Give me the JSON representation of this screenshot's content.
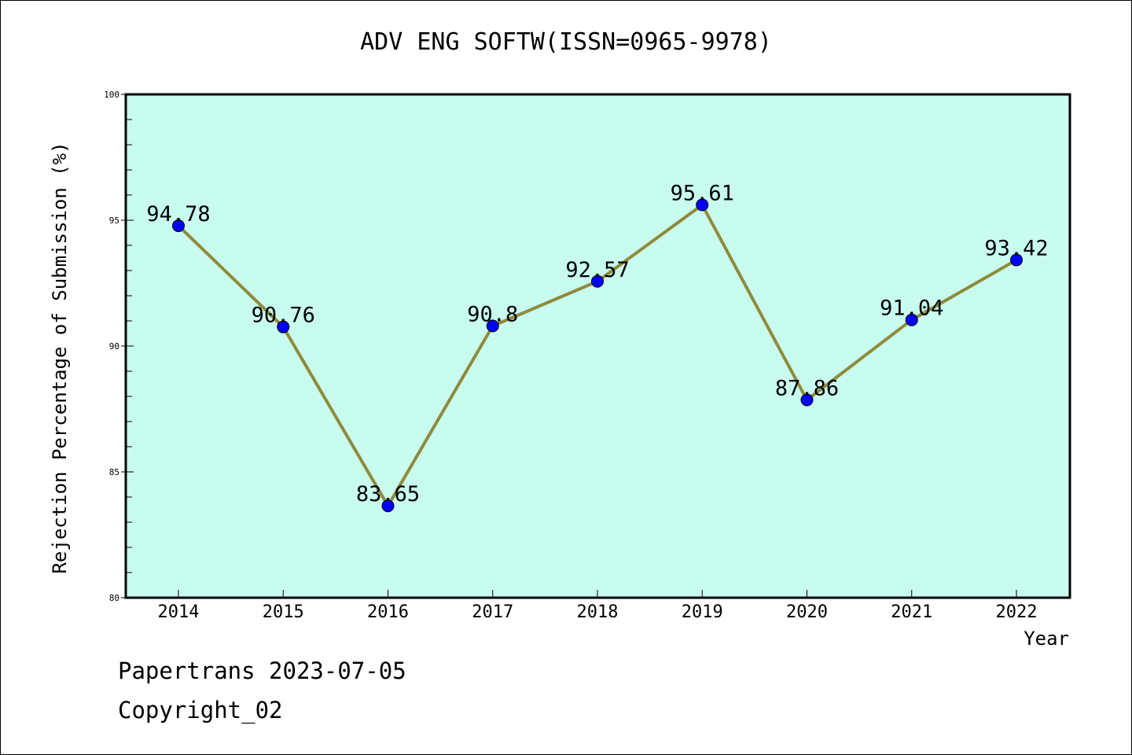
{
  "title": "ADV ENG SOFTW(ISSN=0965-9978)",
  "footer": {
    "line1": "Papertrans 2023-07-05",
    "line2": "Copyright_02"
  },
  "colors": {
    "plot_background": "#c8fcee",
    "line": "#8f8a3c",
    "marker": "#0000ff"
  },
  "chart_data": {
    "type": "line",
    "title": "ADV ENG SOFTW(ISSN=0965-9978)",
    "xlabel": "Year",
    "ylabel": "Rejection Percentage of Submission (%)",
    "x": [
      "2014",
      "2015",
      "2016",
      "2017",
      "2018",
      "2019",
      "2020",
      "2021",
      "2022"
    ],
    "series": [
      {
        "values": [
          94.78,
          90.76,
          83.65,
          90.8,
          92.57,
          95.61,
          87.86,
          91.04,
          93.42
        ],
        "labels": [
          "94.78",
          "90.76",
          "83.65",
          "90.8",
          "92.57",
          "95.61",
          "87.86",
          "91.04",
          "93.42"
        ]
      }
    ],
    "ylim": [
      80,
      100
    ],
    "yticks": [
      "80",
      "85",
      "90",
      "95",
      "100"
    ],
    "grid": false,
    "legend": "none"
  }
}
